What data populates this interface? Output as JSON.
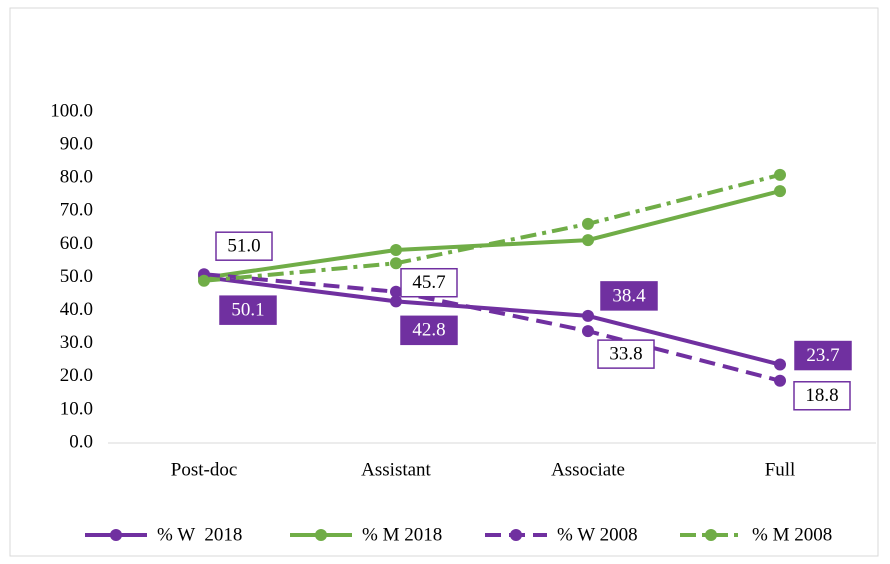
{
  "chart_data": {
    "type": "line",
    "categories": [
      "Post-doc",
      "Assistant",
      "Associate",
      "Full"
    ],
    "series": [
      {
        "name": "% W  2018",
        "color": "#7030a0",
        "dash": "solid",
        "values": [
          50.1,
          42.8,
          38.4,
          23.7
        ],
        "value_labels": [
          "50.1",
          "42.8",
          "38.4",
          "23.7"
        ],
        "label_style": "filled"
      },
      {
        "name": "% M 2018",
        "color": "#70ad47",
        "dash": "solid",
        "values": [
          49.9,
          58.3,
          61.3,
          76.1
        ]
      },
      {
        "name": "% W 2008",
        "color": "#7030a0",
        "dash": "dash",
        "values": [
          51.0,
          45.7,
          33.8,
          18.8
        ],
        "value_labels": [
          "51.0",
          "45.7",
          "33.8",
          "18.8"
        ],
        "label_style": "outlined"
      },
      {
        "name": "% M 2008",
        "color": "#70ad47",
        "dash": "dashdot",
        "values": [
          49.0,
          54.3,
          66.2,
          81.0
        ]
      }
    ],
    "ylim": [
      0,
      100
    ],
    "yticks": [
      {
        "value": 0,
        "label": "0.0"
      },
      {
        "value": 10,
        "label": "10.0"
      },
      {
        "value": 20,
        "label": "20.0"
      },
      {
        "value": 30,
        "label": "30.0"
      },
      {
        "value": 40,
        "label": "40.0"
      },
      {
        "value": 50,
        "label": "50.0"
      },
      {
        "value": 60,
        "label": "60.0"
      },
      {
        "value": 70,
        "label": "70.0"
      },
      {
        "value": 80,
        "label": "80.0"
      },
      {
        "value": 90,
        "label": "90.0"
      },
      {
        "value": 100,
        "label": "100.0"
      }
    ],
    "grid": false,
    "legend": "bottom"
  }
}
